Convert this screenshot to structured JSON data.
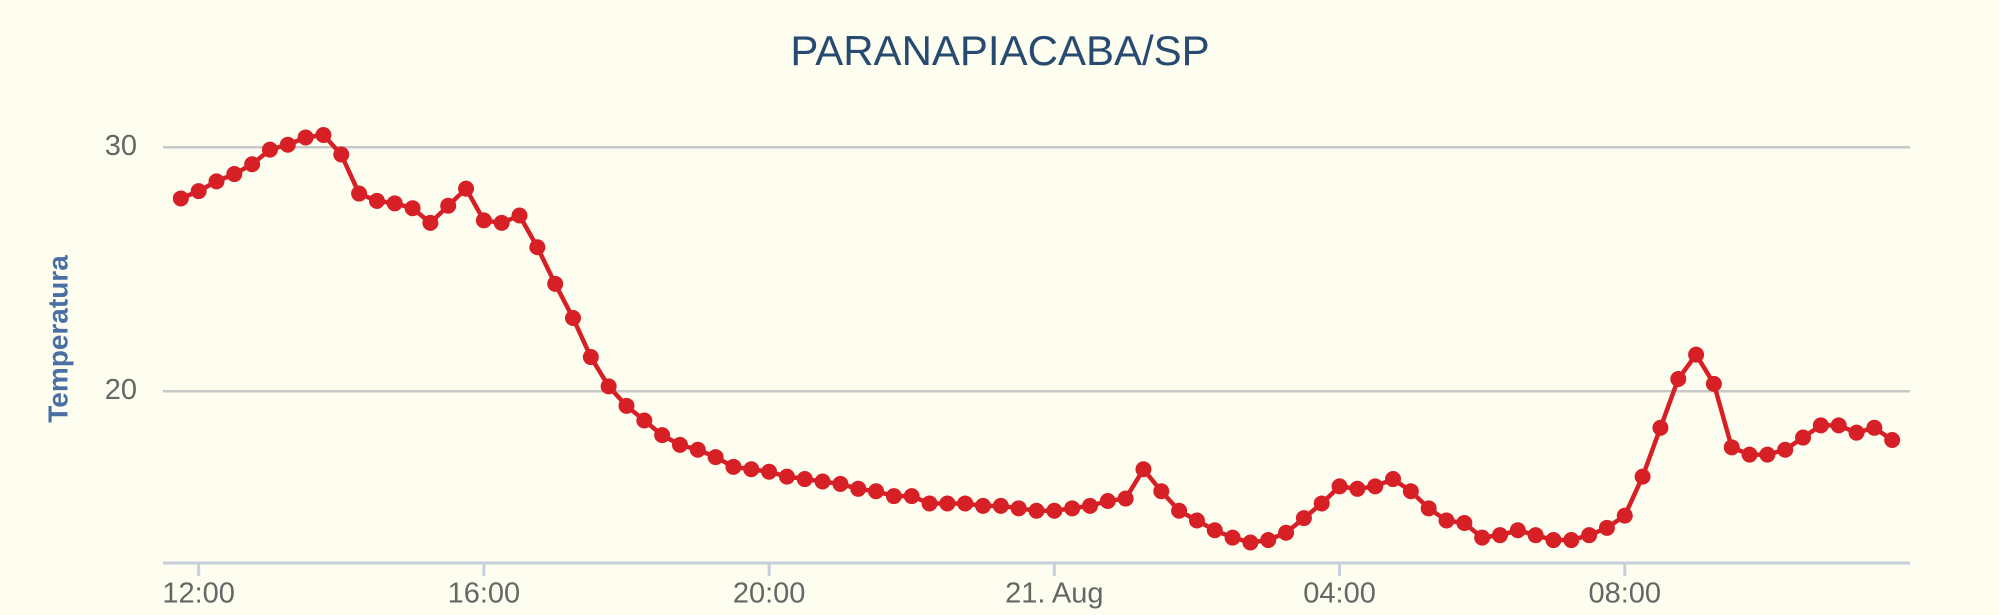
{
  "chart_data": {
    "type": "line",
    "title": "PARANAPIACABA/SP",
    "y_label": "Temperatura",
    "x": [
      11.75,
      12,
      12.25,
      12.5,
      12.75,
      13,
      13.25,
      13.5,
      13.75,
      14,
      14.25,
      14.5,
      14.75,
      15,
      15.25,
      15.5,
      15.75,
      16,
      16.25,
      16.5,
      16.75,
      17,
      17.25,
      17.5,
      17.75,
      18,
      18.25,
      18.5,
      18.75,
      19,
      19.25,
      19.5,
      19.75,
      20,
      20.25,
      20.5,
      20.75,
      21,
      21.25,
      21.5,
      21.75,
      22,
      22.25,
      22.5,
      22.75,
      23,
      23.25,
      23.5,
      23.75,
      24,
      24.25,
      24.5,
      24.75,
      25,
      25.25,
      25.5,
      25.75,
      26,
      26.25,
      26.5,
      26.75,
      27,
      27.25,
      27.5,
      27.75,
      28,
      28.25,
      28.5,
      28.75,
      29,
      29.25,
      29.5,
      29.75,
      30,
      30.25,
      30.5,
      30.75,
      31,
      31.25,
      31.5,
      31.75,
      32,
      32.25,
      32.5,
      32.75,
      33,
      33.25,
      33.5,
      33.75,
      34,
      34.25,
      34.5,
      34.75,
      35,
      35.25,
      35.5,
      35.75
    ],
    "series": [
      {
        "name": "Temperatura",
        "color": "#d71f26",
        "values": [
          27.9,
          28.2,
          28.6,
          28.9,
          29.3,
          29.9,
          30.1,
          30.4,
          30.5,
          29.7,
          28.1,
          27.8,
          27.7,
          27.5,
          26.9,
          27.6,
          28.3,
          27.0,
          26.9,
          27.2,
          25.9,
          24.4,
          23.0,
          21.4,
          20.2,
          19.4,
          18.8,
          18.2,
          17.8,
          17.6,
          17.3,
          16.9,
          16.8,
          16.7,
          16.5,
          16.4,
          16.3,
          16.2,
          16.0,
          15.9,
          15.7,
          15.7,
          15.4,
          15.4,
          15.4,
          15.3,
          15.3,
          15.2,
          15.1,
          15.1,
          15.2,
          15.3,
          15.5,
          15.6,
          16.8,
          15.9,
          15.1,
          14.7,
          14.3,
          14.0,
          13.8,
          13.9,
          14.2,
          14.8,
          15.4,
          16.1,
          16.0,
          16.1,
          16.4,
          15.9,
          15.2,
          14.7,
          14.6,
          14.0,
          14.1,
          14.3,
          14.1,
          13.9,
          13.9,
          14.1,
          14.4,
          14.9,
          16.5,
          18.5,
          20.5,
          21.5,
          20.3,
          17.7,
          17.4,
          17.4,
          17.6,
          18.1,
          18.6,
          18.6,
          18.3,
          18.5,
          18.0
        ]
      }
    ],
    "xlim": [
      11.5,
      36
    ],
    "xticks": [
      {
        "value": 12,
        "label": "12:00"
      },
      {
        "value": 16,
        "label": "16:00"
      },
      {
        "value": 20,
        "label": "20:00"
      },
      {
        "value": 24,
        "label": "21. Aug"
      },
      {
        "value": 28,
        "label": "04:00"
      },
      {
        "value": 32,
        "label": "08:00"
      }
    ],
    "ylim": [
      13,
      33
    ],
    "yticks": [
      20,
      30
    ],
    "grid": true
  }
}
